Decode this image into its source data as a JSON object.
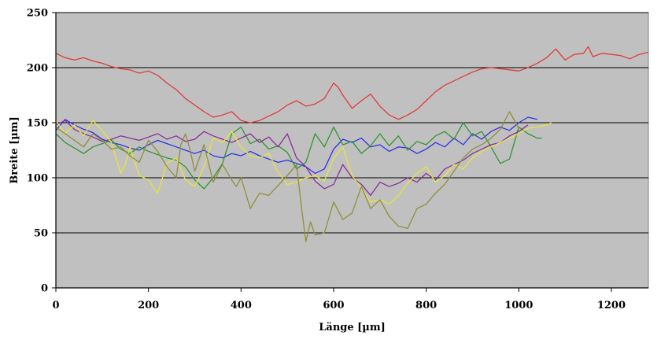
{
  "chart_data": {
    "type": "line",
    "xlabel": "Länge [µm]",
    "ylabel": "Breite [µm]",
    "xlim": [
      0,
      1280
    ],
    "ylim": [
      0,
      250
    ],
    "xticks": [
      0,
      200,
      400,
      600,
      800,
      1000,
      1200
    ],
    "yticks": [
      0,
      50,
      100,
      150,
      200,
      250
    ],
    "grid": "horizontal",
    "legend": "none",
    "plot_background": "#c0c0c0",
    "series": [
      {
        "color": "#e03b3b",
        "x": [
          0,
          20,
          40,
          60,
          80,
          100,
          120,
          140,
          160,
          180,
          200,
          220,
          240,
          260,
          280,
          300,
          320,
          340,
          360,
          380,
          400,
          420,
          440,
          460,
          480,
          500,
          520,
          540,
          560,
          580,
          600,
          610,
          620,
          640,
          660,
          680,
          700,
          720,
          740,
          760,
          780,
          800,
          820,
          840,
          860,
          880,
          900,
          920,
          940,
          960,
          980,
          1000,
          1020,
          1040,
          1060,
          1080,
          1100,
          1120,
          1140,
          1150,
          1160,
          1180,
          1200,
          1220,
          1240,
          1260,
          1280
        ],
        "y": [
          213,
          209,
          207,
          209,
          206,
          204,
          201,
          199,
          198,
          195,
          197,
          193,
          186,
          180,
          172,
          166,
          160,
          155,
          157,
          160,
          152,
          150,
          152,
          156,
          160,
          166,
          170,
          165,
          167,
          172,
          186,
          182,
          175,
          163,
          170,
          176,
          165,
          157,
          153,
          157,
          162,
          170,
          178,
          184,
          188,
          192,
          196,
          199,
          200,
          199,
          198,
          197,
          200,
          204,
          209,
          217,
          207,
          212,
          213,
          219,
          210,
          213,
          212,
          211,
          208,
          212,
          214
        ]
      },
      {
        "color": "#3030e8",
        "x": [
          0,
          20,
          40,
          60,
          80,
          100,
          120,
          140,
          160,
          180,
          200,
          220,
          240,
          260,
          280,
          300,
          320,
          340,
          360,
          380,
          400,
          420,
          440,
          460,
          480,
          500,
          520,
          540,
          560,
          580,
          600,
          620,
          640,
          660,
          680,
          700,
          720,
          740,
          760,
          780,
          800,
          820,
          840,
          860,
          880,
          900,
          920,
          940,
          960,
          980,
          1000,
          1020,
          1040
        ],
        "y": [
          143,
          153,
          148,
          144,
          141,
          135,
          132,
          130,
          127,
          125,
          130,
          134,
          131,
          128,
          125,
          122,
          125,
          120,
          118,
          122,
          120,
          124,
          120,
          117,
          114,
          116,
          113,
          110,
          104,
          108,
          126,
          135,
          132,
          136,
          128,
          130,
          124,
          128,
          127,
          122,
          126,
          132,
          128,
          136,
          130,
          140,
          135,
          142,
          146,
          143,
          150,
          155,
          153
        ]
      },
      {
        "color": "#2f962f",
        "x": [
          0,
          20,
          40,
          60,
          80,
          100,
          120,
          140,
          160,
          180,
          200,
          220,
          240,
          260,
          280,
          290,
          300,
          320,
          340,
          360,
          380,
          400,
          420,
          440,
          460,
          480,
          500,
          520,
          540,
          560,
          580,
          600,
          620,
          640,
          660,
          680,
          700,
          720,
          740,
          760,
          780,
          800,
          820,
          840,
          860,
          880,
          900,
          920,
          940,
          960,
          980,
          1000,
          1020,
          1040,
          1050
        ],
        "y": [
          140,
          132,
          127,
          122,
          128,
          131,
          134,
          126,
          122,
          128,
          124,
          121,
          118,
          116,
          110,
          104,
          98,
          90,
          100,
          113,
          140,
          146,
          131,
          135,
          126,
          129,
          123,
          108,
          114,
          140,
          128,
          146,
          130,
          133,
          122,
          129,
          140,
          129,
          138,
          125,
          133,
          130,
          138,
          142,
          135,
          150,
          138,
          142,
          128,
          113,
          117,
          146,
          140,
          136,
          136
        ]
      },
      {
        "color": "#8a2d9a",
        "x": [
          0,
          20,
          40,
          60,
          80,
          100,
          120,
          140,
          160,
          180,
          200,
          220,
          240,
          260,
          280,
          300,
          320,
          340,
          360,
          380,
          400,
          420,
          440,
          460,
          480,
          500,
          520,
          540,
          560,
          580,
          600,
          620,
          640,
          660,
          680,
          700,
          720,
          740,
          760,
          780,
          800,
          820,
          840,
          860,
          880,
          900,
          920,
          940,
          960,
          980,
          1000,
          1020
        ],
        "y": [
          148,
          152,
          144,
          140,
          137,
          133,
          135,
          138,
          136,
          134,
          137,
          140,
          135,
          138,
          133,
          135,
          142,
          138,
          135,
          132,
          136,
          140,
          132,
          137,
          128,
          140,
          118,
          110,
          97,
          90,
          94,
          112,
          100,
          94,
          84,
          96,
          92,
          95,
          100,
          96,
          104,
          98,
          108,
          112,
          116,
          122,
          126,
          130,
          132,
          138,
          142,
          148
        ]
      },
      {
        "color": "#e6e63c",
        "x": [
          0,
          20,
          40,
          60,
          80,
          100,
          120,
          130,
          140,
          150,
          160,
          180,
          200,
          220,
          240,
          260,
          280,
          300,
          320,
          340,
          360,
          380,
          400,
          420,
          440,
          460,
          480,
          500,
          520,
          540,
          560,
          580,
          600,
          620,
          640,
          660,
          680,
          700,
          720,
          740,
          760,
          780,
          800,
          820,
          840,
          860,
          880,
          900,
          920,
          940,
          960,
          980,
          1000,
          1020,
          1040,
          1060,
          1070
        ],
        "y": [
          152,
          140,
          148,
          138,
          152,
          143,
          132,
          118,
          104,
          112,
          128,
          102,
          98,
          86,
          113,
          118,
          98,
          92,
          110,
          136,
          132,
          142,
          128,
          120,
          118,
          122,
          105,
          94,
          96,
          100,
          102,
          97,
          118,
          128,
          102,
          90,
          78,
          80,
          76,
          84,
          95,
          104,
          110,
          96,
          102,
          112,
          108,
          118,
          124,
          128,
          132,
          136,
          140,
          145,
          146,
          148,
          150
        ]
      },
      {
        "color": "#8f8f3a",
        "x": [
          0,
          20,
          40,
          60,
          80,
          100,
          120,
          140,
          160,
          180,
          200,
          220,
          240,
          260,
          270,
          280,
          290,
          300,
          320,
          340,
          360,
          380,
          390,
          400,
          420,
          440,
          460,
          480,
          500,
          520,
          530,
          540,
          550,
          560,
          580,
          600,
          620,
          640,
          660,
          680,
          700,
          720,
          740,
          760,
          780,
          800,
          820,
          840,
          860,
          880,
          900,
          920,
          940,
          960,
          980,
          1000
        ],
        "y": [
          146,
          140,
          134,
          128,
          140,
          134,
          126,
          128,
          120,
          114,
          134,
          124,
          110,
          100,
          130,
          140,
          125,
          106,
          130,
          96,
          112,
          98,
          92,
          100,
          72,
          86,
          84,
          93,
          102,
          112,
          75,
          42,
          60,
          48,
          50,
          78,
          62,
          68,
          92,
          72,
          80,
          65,
          56,
          54,
          72,
          76,
          86,
          94,
          106,
          118,
          126,
          130,
          136,
          144,
          160,
          145
        ]
      }
    ]
  }
}
